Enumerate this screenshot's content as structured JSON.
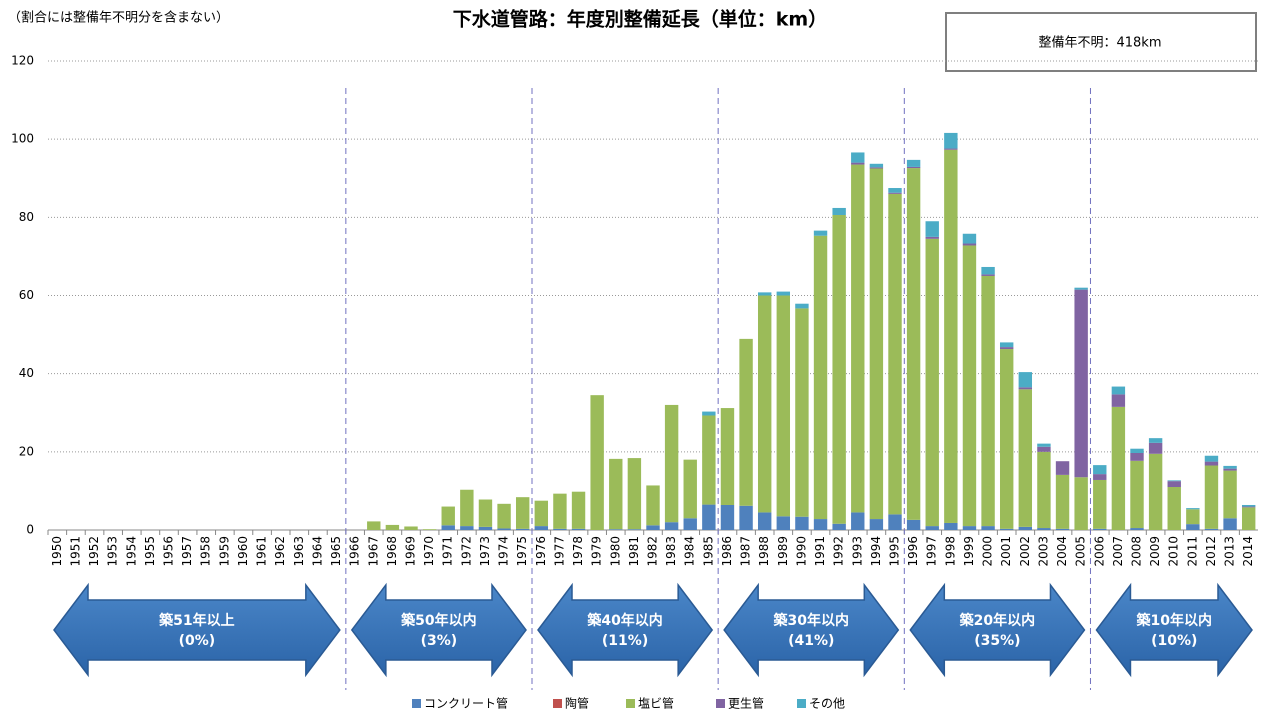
{
  "chart_data": {
    "type": "stacked_bar",
    "title": "下水道管路：年度別整備延長（単位：km）",
    "note": "（割合には整備年不明分を含まない）",
    "unknown_box": "整備年不明：418km",
    "categories": [
      "1950",
      "1951",
      "1952",
      "1953",
      "1954",
      "1955",
      "1956",
      "1957",
      "1958",
      "1959",
      "1960",
      "1961",
      "1962",
      "1963",
      "1964",
      "1965",
      "1966",
      "1967",
      "1968",
      "1969",
      "1970",
      "1971",
      "1972",
      "1973",
      "1974",
      "1975",
      "1976",
      "1977",
      "1978",
      "1979",
      "1980",
      "1981",
      "1982",
      "1983",
      "1984",
      "1985",
      "1986",
      "1987",
      "1988",
      "1989",
      "1990",
      "1991",
      "1992",
      "1993",
      "1994",
      "1995",
      "1996",
      "1997",
      "1998",
      "1999",
      "2000",
      "2001",
      "2002",
      "2003",
      "2004",
      "2005",
      "2006",
      "2007",
      "2008",
      "2009",
      "2010",
      "2011",
      "2012",
      "2013",
      "2014"
    ],
    "series": [
      {
        "name": "コンクリート管",
        "color": "#4f81bd",
        "values": [
          0,
          0,
          0,
          0,
          0,
          0,
          0,
          0,
          0,
          0,
          0,
          0,
          0,
          0,
          0,
          0,
          0,
          0,
          0,
          0,
          0,
          1.2,
          1,
          0.8,
          0.4,
          0.3,
          1,
          0.3,
          0.3,
          0,
          0.2,
          0.2,
          1.2,
          2,
          3,
          6.5,
          6.4,
          6.2,
          4.5,
          3.5,
          3.4,
          2.8,
          1.6,
          4.5,
          2.8,
          4,
          2.6,
          1,
          1.8,
          1,
          1,
          0.3,
          0.8,
          0.5,
          0.3,
          0,
          0.3,
          0,
          0.5,
          0,
          0,
          1.5,
          0.3,
          3,
          0
        ]
      },
      {
        "name": "陶管",
        "color": "#c0504d",
        "values": [
          0,
          0,
          0,
          0,
          0,
          0,
          0,
          0,
          0,
          0,
          0,
          0,
          0,
          0,
          0,
          0,
          0,
          0,
          0,
          0,
          0,
          0,
          0,
          0,
          0,
          0,
          0,
          0,
          0,
          0,
          0,
          0,
          0,
          0,
          0,
          0,
          0,
          0,
          0,
          0,
          0,
          0,
          0,
          0,
          0,
          0,
          0,
          0,
          0,
          0,
          0,
          0,
          0,
          0,
          0,
          0,
          0,
          0,
          0,
          0,
          0,
          0,
          0,
          0,
          0
        ]
      },
      {
        "name": "塩ビ管",
        "color": "#9bbb59",
        "values": [
          0,
          0,
          0,
          0,
          0,
          0,
          0,
          0,
          0,
          0,
          0,
          0,
          0,
          0,
          0,
          0,
          0,
          2.2,
          1.3,
          0.9,
          0.2,
          4.8,
          9.3,
          7,
          6.3,
          8.1,
          6.5,
          9,
          9.5,
          34.5,
          18,
          18.2,
          10.2,
          30,
          15,
          22.8,
          24.8,
          42.7,
          55.5,
          56.5,
          53.3,
          72.5,
          79,
          89,
          89.7,
          82,
          90,
          73.5,
          95.5,
          71.8,
          64,
          46,
          35.2,
          19.5,
          13.8,
          13.5,
          12.5,
          31.5,
          17.2,
          19.5,
          11,
          3.8,
          16.2,
          12.2,
          5.8
        ]
      },
      {
        "name": "更生管",
        "color": "#8064a2",
        "values": [
          0,
          0,
          0,
          0,
          0,
          0,
          0,
          0,
          0,
          0,
          0,
          0,
          0,
          0,
          0,
          0,
          0,
          0,
          0,
          0,
          0,
          0,
          0,
          0,
          0,
          0,
          0,
          0,
          0,
          0,
          0,
          0,
          0,
          0,
          0,
          0,
          0,
          0,
          0,
          0,
          0,
          0,
          0,
          0.5,
          0.3,
          0.3,
          0.3,
          0.5,
          0.3,
          0.5,
          0.4,
          0.5,
          0.5,
          1.3,
          3.5,
          48,
          1.5,
          3.2,
          2,
          2.8,
          1.5,
          0,
          1,
          0.5,
          0.2
        ]
      },
      {
        "name": "その他",
        "color": "#4bacc6",
        "values": [
          0,
          0,
          0,
          0,
          0,
          0,
          0,
          0,
          0,
          0,
          0,
          0,
          0,
          0,
          0,
          0,
          0,
          0,
          0,
          0,
          0,
          0,
          0,
          0,
          0,
          0,
          0,
          0,
          0,
          0,
          0,
          0,
          0,
          0,
          0,
          1,
          0,
          0,
          0.8,
          1,
          1.2,
          1.3,
          1.8,
          2.6,
          0.9,
          1.2,
          1.8,
          4,
          4,
          2.5,
          1.9,
          1.2,
          3.9,
          0.8,
          0,
          0.5,
          2.3,
          2,
          1.1,
          1.2,
          0.2,
          0.3,
          1.5,
          0.7,
          0.4
        ]
      }
    ],
    "periods": [
      {
        "label": "築51年以上",
        "share": "(0%)"
      },
      {
        "label": "築50年以内",
        "share": "(3%)"
      },
      {
        "label": "築40年以内",
        "share": "(11%)"
      },
      {
        "label": "築30年以内",
        "share": "(41%)"
      },
      {
        "label": "築20年以内",
        "share": "(35%)"
      },
      {
        "label": "築10年以内",
        "share": "(10%)"
      }
    ],
    "ylim": [
      0,
      120
    ],
    "yticks": [
      0,
      20,
      40,
      60,
      80,
      100,
      120
    ],
    "grid": true
  }
}
